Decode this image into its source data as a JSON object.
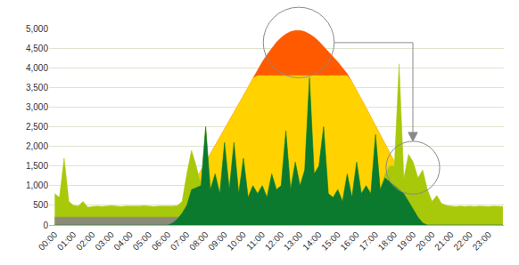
{
  "chart_data": {
    "type": "area",
    "x": [
      0,
      0.25,
      0.5,
      0.75,
      1,
      1.25,
      1.5,
      1.75,
      2,
      2.25,
      2.5,
      2.75,
      3,
      3.25,
      3.5,
      3.75,
      4,
      4.25,
      4.5,
      4.75,
      5,
      5.25,
      5.5,
      5.75,
      6,
      6.25,
      6.5,
      6.75,
      7,
      7.25,
      7.5,
      7.75,
      8,
      8.25,
      8.5,
      8.75,
      9,
      9.25,
      9.5,
      9.75,
      10,
      10.25,
      10.5,
      10.75,
      11,
      11.25,
      11.5,
      11.75,
      12,
      12.25,
      12.5,
      12.75,
      13,
      13.25,
      13.5,
      13.75,
      14,
      14.25,
      14.5,
      14.75,
      15,
      15.25,
      15.5,
      15.75,
      16,
      16.25,
      16.5,
      16.75,
      17,
      17.25,
      17.5,
      17.75,
      18,
      18.25,
      18.5,
      18.75,
      19,
      19.25,
      19.5,
      19.75,
      20,
      20.25,
      20.5,
      20.75,
      21,
      21.25,
      21.5,
      21.75,
      22,
      22.25,
      22.5,
      22.75,
      23,
      23.25,
      23.5,
      23.75
    ],
    "series": [
      {
        "color": "#ff5a00",
        "values": [
          0,
          0,
          0,
          0,
          0,
          0,
          0,
          0,
          0,
          0,
          0,
          0,
          0,
          0,
          0,
          0,
          0,
          0,
          0,
          0,
          0,
          0,
          0,
          0,
          0,
          120,
          330,
          550,
          760,
          970,
          1180,
          1390,
          1600,
          1810,
          2020,
          2230,
          2440,
          2650,
          2860,
          3070,
          3280,
          3500,
          3730,
          3950,
          4150,
          4330,
          4500,
          4650,
          4770,
          4860,
          4920,
          4950,
          4950,
          4920,
          4860,
          4780,
          4670,
          4540,
          4420,
          4290,
          4150,
          4000,
          3850,
          3640,
          3430,
          3200,
          2980,
          2750,
          2520,
          2290,
          2070,
          1840,
          1610,
          1380,
          1160,
          930,
          700,
          470,
          250,
          60,
          0,
          0,
          0,
          0,
          0,
          0,
          0,
          0,
          0,
          0,
          0,
          0,
          0,
          0,
          0,
          0
        ]
      },
      {
        "color": "#ffd200",
        "values": [
          0,
          0,
          0,
          0,
          0,
          0,
          0,
          0,
          0,
          0,
          0,
          0,
          0,
          0,
          0,
          0,
          0,
          0,
          0,
          0,
          0,
          0,
          0,
          0,
          0,
          120,
          330,
          550,
          760,
          970,
          1180,
          1390,
          1600,
          1810,
          2020,
          2230,
          2440,
          2650,
          2860,
          3070,
          3280,
          3500,
          3730,
          3800,
          3800,
          3800,
          3800,
          3800,
          3800,
          3800,
          3800,
          3800,
          3800,
          3800,
          3800,
          3800,
          3800,
          3800,
          3800,
          3800,
          3800,
          3800,
          3800,
          3640,
          3430,
          3200,
          2980,
          2750,
          2520,
          2290,
          2070,
          1840,
          1610,
          1380,
          1160,
          930,
          700,
          470,
          250,
          60,
          0,
          0,
          0,
          0,
          0,
          0,
          0,
          0,
          0,
          0,
          0,
          0,
          0,
          0,
          0,
          0
        ]
      },
      {
        "color": "#a8c80a",
        "values": [
          800,
          700,
          1700,
          600,
          500,
          480,
          600,
          450,
          470,
          480,
          470,
          480,
          490,
          480,
          470,
          480,
          480,
          470,
          480,
          490,
          480,
          470,
          480,
          480,
          470,
          480,
          490,
          600,
          1300,
          1900,
          1500,
          1000,
          2500,
          900,
          1300,
          800,
          2100,
          900,
          2100,
          800,
          1700,
          700,
          1000,
          800,
          1000,
          700,
          1300,
          900,
          1000,
          2400,
          900,
          1600,
          1000,
          1400,
          3750,
          1300,
          1500,
          2500,
          800,
          700,
          900,
          600,
          1300,
          700,
          1600,
          800,
          1000,
          800,
          2300,
          900,
          1300,
          1500,
          1500,
          4100,
          1200,
          1800,
          1600,
          1200,
          1400,
          900,
          600,
          750,
          550,
          500,
          480,
          470,
          480,
          470,
          480,
          470,
          480,
          470,
          470,
          480,
          470,
          470
        ]
      },
      {
        "color": "#8c8a78",
        "values": [
          200,
          200,
          200,
          200,
          200,
          200,
          200,
          200,
          200,
          200,
          200,
          200,
          200,
          200,
          200,
          200,
          200,
          200,
          200,
          200,
          200,
          200,
          200,
          200,
          200,
          200,
          200,
          200,
          200,
          0,
          0,
          0,
          0,
          0,
          0,
          0,
          0,
          0,
          0,
          0,
          0,
          0,
          0,
          0,
          0,
          0,
          0,
          0,
          0,
          0,
          0,
          0,
          0,
          0,
          0,
          0,
          0,
          0,
          0,
          0,
          0,
          0,
          0,
          0,
          0,
          0,
          0,
          0,
          0,
          0,
          0,
          0,
          0,
          0,
          0,
          0,
          0,
          0,
          0,
          0,
          0,
          0,
          0,
          0,
          0,
          0,
          0,
          0,
          0,
          0,
          0,
          0,
          0,
          0,
          0,
          0
        ]
      },
      {
        "color": "#0b7a2e",
        "values": [
          0,
          0,
          0,
          0,
          0,
          0,
          0,
          0,
          0,
          0,
          0,
          0,
          0,
          0,
          0,
          0,
          0,
          0,
          0,
          0,
          0,
          0,
          0,
          0,
          0,
          50,
          150,
          300,
          500,
          900,
          950,
          1000,
          2500,
          900,
          1300,
          800,
          2100,
          900,
          2100,
          800,
          1700,
          700,
          1000,
          800,
          1000,
          700,
          1300,
          900,
          1000,
          2400,
          900,
          1600,
          1000,
          1400,
          3750,
          1300,
          1500,
          2500,
          800,
          700,
          900,
          600,
          1300,
          700,
          1600,
          800,
          1000,
          800,
          2300,
          900,
          1200,
          1100,
          1000,
          900,
          800,
          600,
          400,
          200,
          50,
          0,
          0,
          0,
          0,
          0,
          0,
          0,
          0,
          0,
          0,
          0,
          0,
          0,
          0,
          0,
          0,
          0
        ]
      }
    ],
    "xlim": [
      -0.3,
      23.8
    ],
    "xticks": [
      {
        "value": 0,
        "label": "00:00"
      },
      {
        "value": 1,
        "label": "01:00"
      },
      {
        "value": 2,
        "label": "02:00"
      },
      {
        "value": 3,
        "label": "03:00"
      },
      {
        "value": 4,
        "label": "04:00"
      },
      {
        "value": 5,
        "label": "05:00"
      },
      {
        "value": 6,
        "label": "06:00"
      },
      {
        "value": 7,
        "label": "07:00"
      },
      {
        "value": 8,
        "label": "08:00"
      },
      {
        "value": 9,
        "label": "09:00"
      },
      {
        "value": 10,
        "label": "10:00"
      },
      {
        "value": 11,
        "label": "11:00"
      },
      {
        "value": 12,
        "label": "12:00"
      },
      {
        "value": 13,
        "label": "13:00"
      },
      {
        "value": 14,
        "label": "14:00"
      },
      {
        "value": 15,
        "label": "15:00"
      },
      {
        "value": 16,
        "label": "16:00"
      },
      {
        "value": 17,
        "label": "17:00"
      },
      {
        "value": 18,
        "label": "18:00"
      },
      {
        "value": 19,
        "label": "19:00"
      },
      {
        "value": 20,
        "label": "20:00"
      },
      {
        "value": 21,
        "label": "21:00"
      },
      {
        "value": 22,
        "label": "22:00"
      },
      {
        "value": 23,
        "label": "23:00"
      }
    ],
    "ylim": [
      0,
      5000
    ],
    "yticks": [
      0,
      500,
      {
        "value": 1000,
        "label": "1,000"
      },
      {
        "value": 1500,
        "label": "1,500"
      },
      {
        "value": 2000,
        "label": "2,000"
      },
      {
        "value": 2500,
        "label": "2,500"
      },
      {
        "value": 3000,
        "label": "3,000"
      },
      {
        "value": 3500,
        "label": "3,500"
      },
      {
        "value": 4000,
        "label": "4,000"
      },
      {
        "value": 4500,
        "label": "4,500"
      },
      {
        "value": 5000,
        "label": "5,000"
      }
    ],
    "grid": true
  }
}
